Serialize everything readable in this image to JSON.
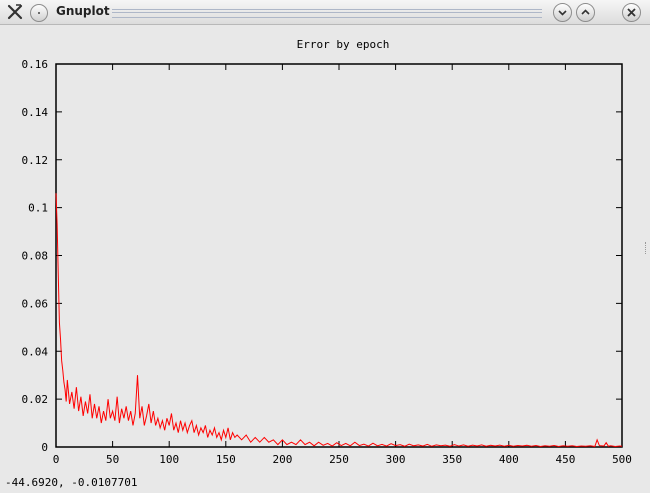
{
  "window": {
    "title": "Gnuplot"
  },
  "status": {
    "coordinates": "-44.6920, -0.0107701"
  },
  "icons": {
    "app": "gnuplot-x-icon",
    "menu": "window-menu-icon",
    "minimize": "chevron-down-icon",
    "maximize": "chevron-up-icon",
    "close": "close-icon"
  },
  "colors": {
    "line": "#ff0000",
    "background": "#e8e8e8"
  },
  "chart_data": {
    "type": "line",
    "title": "Error by epoch",
    "xlabel": "",
    "ylabel": "",
    "xlim": [
      0,
      500
    ],
    "ylim": [
      0,
      0.16
    ],
    "xticks": [
      0,
      50,
      100,
      150,
      200,
      250,
      300,
      350,
      400,
      450,
      500
    ],
    "yticks": [
      "0",
      "0.02",
      "0.04",
      "0.06",
      "0.08",
      "0.1",
      "0.12",
      "0.14",
      "0.16"
    ],
    "grid": false,
    "series": [
      {
        "color": "#ff0000",
        "points": [
          [
            0,
            0.106
          ],
          [
            1,
            0.093
          ],
          [
            2,
            0.072
          ],
          [
            3,
            0.052
          ],
          [
            4,
            0.045
          ],
          [
            5,
            0.036
          ],
          [
            6,
            0.032
          ],
          [
            7,
            0.027
          ],
          [
            8,
            0.024
          ],
          [
            9,
            0.019
          ],
          [
            10,
            0.028
          ],
          [
            12,
            0.018
          ],
          [
            14,
            0.023
          ],
          [
            16,
            0.016
          ],
          [
            18,
            0.025
          ],
          [
            20,
            0.015
          ],
          [
            22,
            0.021
          ],
          [
            24,
            0.013
          ],
          [
            26,
            0.019
          ],
          [
            28,
            0.014
          ],
          [
            30,
            0.022
          ],
          [
            32,
            0.012
          ],
          [
            34,
            0.018
          ],
          [
            36,
            0.012
          ],
          [
            38,
            0.017
          ],
          [
            40,
            0.01
          ],
          [
            42,
            0.015
          ],
          [
            44,
            0.011
          ],
          [
            46,
            0.02
          ],
          [
            48,
            0.012
          ],
          [
            50,
            0.015
          ],
          [
            52,
            0.011
          ],
          [
            54,
            0.021
          ],
          [
            56,
            0.01
          ],
          [
            58,
            0.016
          ],
          [
            60,
            0.012
          ],
          [
            62,
            0.017
          ],
          [
            64,
            0.011
          ],
          [
            66,
            0.015
          ],
          [
            68,
            0.009
          ],
          [
            70,
            0.014
          ],
          [
            72,
            0.03
          ],
          [
            74,
            0.012
          ],
          [
            76,
            0.017
          ],
          [
            78,
            0.009
          ],
          [
            80,
            0.013
          ],
          [
            82,
            0.018
          ],
          [
            84,
            0.01
          ],
          [
            86,
            0.015
          ],
          [
            88,
            0.009
          ],
          [
            90,
            0.012
          ],
          [
            92,
            0.008
          ],
          [
            94,
            0.011
          ],
          [
            96,
            0.007
          ],
          [
            98,
            0.012
          ],
          [
            100,
            0.009
          ],
          [
            102,
            0.014
          ],
          [
            104,
            0.007
          ],
          [
            106,
            0.01
          ],
          [
            108,
            0.006
          ],
          [
            110,
            0.011
          ],
          [
            112,
            0.007
          ],
          [
            114,
            0.01
          ],
          [
            116,
            0.006
          ],
          [
            118,
            0.009
          ],
          [
            120,
            0.011
          ],
          [
            122,
            0.006
          ],
          [
            124,
            0.009
          ],
          [
            126,
            0.005
          ],
          [
            128,
            0.008
          ],
          [
            130,
            0.006
          ],
          [
            132,
            0.009
          ],
          [
            134,
            0.004
          ],
          [
            136,
            0.007
          ],
          [
            138,
            0.005
          ],
          [
            140,
            0.008
          ],
          [
            142,
            0.004
          ],
          [
            144,
            0.006
          ],
          [
            146,
            0.003
          ],
          [
            148,
            0.007
          ],
          [
            150,
            0.004
          ],
          [
            152,
            0.008
          ],
          [
            154,
            0.003
          ],
          [
            156,
            0.006
          ],
          [
            158,
            0.004
          ],
          [
            160,
            0.005
          ],
          [
            164,
            0.003
          ],
          [
            168,
            0.005
          ],
          [
            172,
            0.002
          ],
          [
            176,
            0.004
          ],
          [
            180,
            0.002
          ],
          [
            184,
            0.004
          ],
          [
            188,
            0.002
          ],
          [
            192,
            0.003
          ],
          [
            196,
            0.001
          ],
          [
            200,
            0.003
          ],
          [
            204,
            0.001
          ],
          [
            208,
            0.002
          ],
          [
            212,
            0.001
          ],
          [
            216,
            0.003
          ],
          [
            220,
            0.001
          ],
          [
            224,
            0.002
          ],
          [
            228,
            0.0005
          ],
          [
            232,
            0.002
          ],
          [
            236,
            0.0007
          ],
          [
            240,
            0.0015
          ],
          [
            244,
            0.0004
          ],
          [
            248,
            0.0018
          ],
          [
            252,
            0.0006
          ],
          [
            256,
            0.0015
          ],
          [
            260,
            0.0005
          ],
          [
            264,
            0.002
          ],
          [
            268,
            0.0006
          ],
          [
            272,
            0.0012
          ],
          [
            276,
            0.0004
          ],
          [
            280,
            0.0016
          ],
          [
            284,
            0.0005
          ],
          [
            288,
            0.0011
          ],
          [
            292,
            0.0004
          ],
          [
            296,
            0.0014
          ],
          [
            300,
            0.0006
          ],
          [
            304,
            0.001
          ],
          [
            308,
            0.0003
          ],
          [
            312,
            0.0012
          ],
          [
            316,
            0.0005
          ],
          [
            320,
            0.0009
          ],
          [
            324,
            0.0004
          ],
          [
            328,
            0.0011
          ],
          [
            332,
            0.0003
          ],
          [
            336,
            0.0009
          ],
          [
            340,
            0.0005
          ],
          [
            344,
            0.0008
          ],
          [
            348,
            0.0003
          ],
          [
            352,
            0.001
          ],
          [
            356,
            0.0004
          ],
          [
            360,
            0.0009
          ],
          [
            364,
            0.0003
          ],
          [
            368,
            0.0008
          ],
          [
            372,
            0.0004
          ],
          [
            376,
            0.0009
          ],
          [
            380,
            0.0003
          ],
          [
            384,
            0.0007
          ],
          [
            388,
            0.0004
          ],
          [
            392,
            0.0008
          ],
          [
            396,
            0.0003
          ],
          [
            400,
            0.0007
          ],
          [
            404,
            0.0003
          ],
          [
            408,
            0.0006
          ],
          [
            412,
            0.0004
          ],
          [
            416,
            0.0007
          ],
          [
            420,
            0.0003
          ],
          [
            424,
            0.0006
          ],
          [
            428,
            0.0002
          ],
          [
            432,
            0.0005
          ],
          [
            436,
            0.0003
          ],
          [
            440,
            0.0006
          ],
          [
            444,
            0.0002
          ],
          [
            448,
            0.0005
          ],
          [
            452,
            0.0003
          ],
          [
            456,
            0.0005
          ],
          [
            460,
            0.0002
          ],
          [
            464,
            0.0004
          ],
          [
            468,
            0.0003
          ],
          [
            472,
            0.0005
          ],
          [
            476,
            0.0002
          ],
          [
            478,
            0.003
          ],
          [
            480,
            0.0006
          ],
          [
            484,
            0.0004
          ],
          [
            486,
            0.0018
          ],
          [
            488,
            0.0003
          ],
          [
            490,
            0.0005
          ],
          [
            494,
            0.0002
          ],
          [
            498,
            0.0004
          ],
          [
            500,
            0.0003
          ]
        ]
      }
    ]
  }
}
